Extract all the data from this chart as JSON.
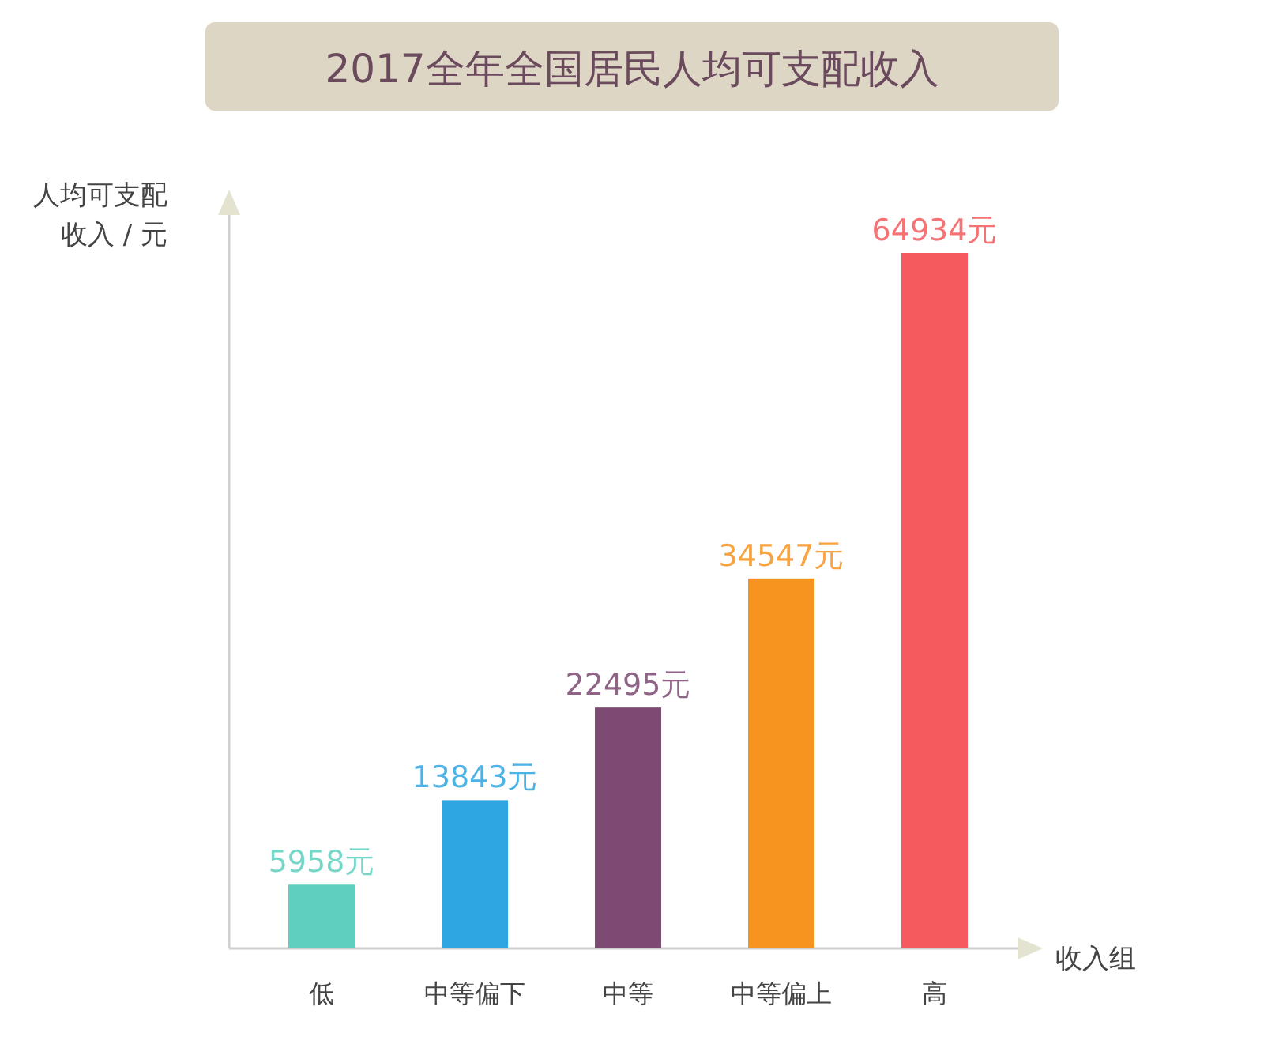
{
  "chart_data": {
    "type": "bar",
    "title": "2017全年全国居民人均可支配收入",
    "ylabel": "人均可支配收入 / 元",
    "xlabel": "收入组",
    "categories": [
      "低",
      "中等偏下",
      "中等",
      "中等偏上",
      "高"
    ],
    "values": [
      5958,
      13843,
      22495,
      34547,
      64934
    ],
    "colors": [
      "#5fd0bf",
      "#2ea6e0",
      "#7c4a73",
      "#f7941f",
      "#f45a5e"
    ],
    "value_labels": [
      "5958元",
      "13843元",
      "22495元",
      "34547元",
      "64934元"
    ]
  }
}
